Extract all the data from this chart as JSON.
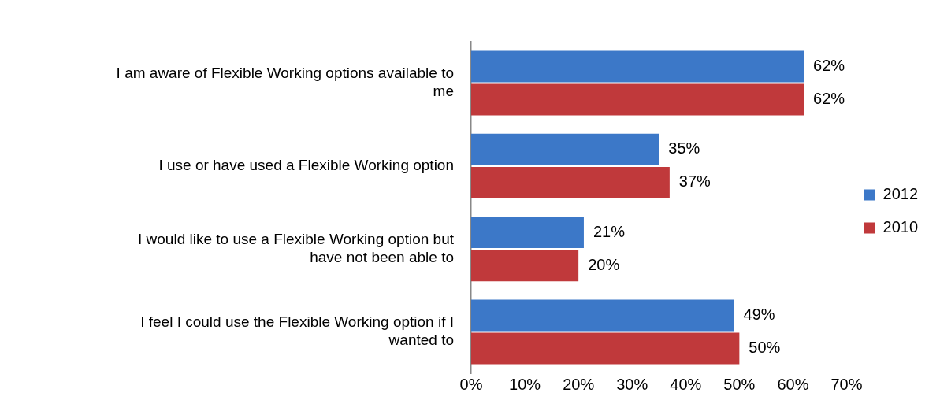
{
  "chart_data": {
    "type": "bar",
    "orientation": "horizontal",
    "categories": [
      "I am aware of Flexible Working options available to me",
      "I use or have used a Flexible Working option",
      "I would like to use a Flexible Working option but have not been able to",
      "I feel I could use the Flexible Working option if I wanted to"
    ],
    "series": [
      {
        "name": "2012",
        "color": "#3c78c8",
        "values": [
          62,
          35,
          21,
          49
        ],
        "value_labels": [
          "62%",
          "35%",
          "21%",
          "49%"
        ]
      },
      {
        "name": "2010",
        "color": "#c0393b",
        "values": [
          62,
          37,
          20,
          50
        ],
        "value_labels": [
          "62%",
          "37%",
          "20%",
          "50%"
        ]
      }
    ],
    "xlim": [
      0,
      70
    ],
    "xticks": [
      {
        "value": 0,
        "label": "0%"
      },
      {
        "value": 10,
        "label": "10%"
      },
      {
        "value": 20,
        "label": "20%"
      },
      {
        "value": 30,
        "label": "30%"
      },
      {
        "value": 40,
        "label": "40%"
      },
      {
        "value": 50,
        "label": "50%"
      },
      {
        "value": 60,
        "label": "60%"
      },
      {
        "value": 70,
        "label": "70%"
      }
    ],
    "grid": false,
    "legend": "right"
  }
}
